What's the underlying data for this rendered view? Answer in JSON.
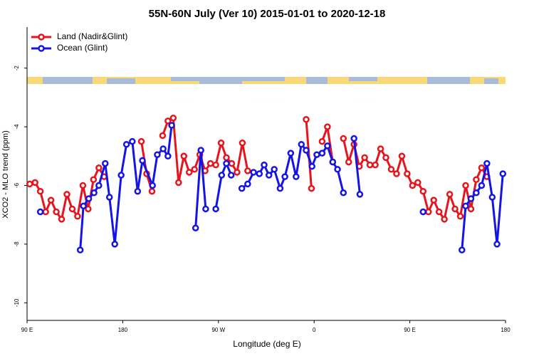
{
  "chart_data": {
    "type": "line",
    "title": "55N-60N July (Ver 10)   2015-01-01 to 2020-12-18",
    "x_label": "Longitude (deg E)",
    "y_label": "XCO2 - MLO trend (ppm)",
    "xlim": [
      90,
      540
    ],
    "ylim": [
      -10.6,
      -0.6
    ],
    "xticks": [
      {
        "value": 90,
        "label": "90 E"
      },
      {
        "value": 180,
        "label": "180"
      },
      {
        "value": 270,
        "label": "90 W"
      },
      {
        "value": 360,
        "label": "0"
      },
      {
        "value": 450,
        "label": "90 E"
      },
      {
        "value": 540,
        "label": "180"
      }
    ],
    "yticks": [
      -2,
      -4,
      -6,
      -8,
      -10
    ],
    "legend": "top-left",
    "series": [
      {
        "name": "Land (Nadir&Glint)",
        "color": "#e8141c",
        "x": [
          92.5,
          97.5,
          102.5,
          107.5,
          112.5,
          117.5,
          122.5,
          127.5,
          132.5,
          137.5,
          142.5,
          147.5,
          152.5,
          157.5,
          162.5,
          180,
          197.5,
          202.5,
          207.5,
          212.5,
          217.5,
          222.5,
          227.5,
          232.5,
          237.5,
          242.5,
          247.5,
          252.5,
          257.5,
          262.5,
          267.5,
          272.5,
          277.5,
          282.5,
          287.5,
          292.5,
          297.5,
          325,
          352.5,
          357.5,
          362.5,
          367.5,
          372.5,
          377.5,
          382.5,
          387.5,
          392.5,
          397.5,
          402.5,
          407.5,
          412.5,
          417.5,
          422.5,
          427.5,
          432.5,
          437.5,
          442.5,
          447.5,
          452.5,
          457.5,
          462.5,
          467.5,
          472.5,
          477.5,
          482.5,
          487.5,
          492.5,
          497.5,
          502.5,
          507.5,
          512.5,
          517.5,
          522.5
        ],
        "values": [
          -5.95,
          -5.9,
          -6.2,
          -6.9,
          -6.5,
          -6.9,
          -7.15,
          -6.3,
          -6.8,
          -7.05,
          -6.0,
          -6.8,
          -5.8,
          -5.4,
          -5.7,
          null,
          -4.5,
          -5.6,
          -6.2,
          null,
          -4.3,
          -3.8,
          -3.7,
          -5.9,
          -5.0,
          -5.55,
          -5.45,
          -4.95,
          -5.5,
          -5.25,
          -5.3,
          -4.55,
          -5.05,
          -5.25,
          -5.55,
          -4.55,
          -5.5,
          null,
          -3.75,
          -6.1,
          null,
          -4.5,
          -4.0,
          -5.2,
          null,
          -4.4,
          -5.2,
          -4.6,
          -5.35,
          -5.05,
          -5.3,
          -5.3,
          -4.75,
          -5.05,
          -5.45,
          -5.6,
          -5.0,
          -5.6,
          -6.0,
          -5.9,
          -6.2,
          -6.9,
          -6.5,
          -6.9,
          -7.15,
          -6.3,
          -6.8,
          -7.05,
          -6.0,
          -6.8,
          -5.8,
          -5.4,
          -5.7
        ]
      },
      {
        "name": "Ocean (Glint)",
        "color": "#1414e6",
        "x": [
          102.5,
          120,
          140,
          143,
          148,
          153,
          157.5,
          163.5,
          167.5,
          172.5,
          178.5,
          183.5,
          189,
          194,
          198.5,
          208,
          212.5,
          218,
          222.5,
          226,
          237,
          248.5,
          253.5,
          258,
          262,
          267.5,
          273,
          277.5,
          282,
          287,
          292,
          297.5,
          303,
          308.5,
          313,
          317.5,
          322.5,
          328,
          332.5,
          338,
          343,
          348,
          352.5,
          358,
          362.5,
          367.5,
          372.5,
          377.5,
          382,
          387.5,
          392,
          397.5,
          403,
          430,
          462.5,
          480,
          499,
          502.5,
          507.5,
          512.5,
          517.5,
          522.5,
          527.5,
          532,
          537.5
        ],
        "values": [
          -6.9,
          null,
          -8.2,
          -6.7,
          -6.45,
          -6.25,
          -6.0,
          -5.25,
          -6.4,
          -8.0,
          -5.65,
          -4.6,
          -4.5,
          -6.2,
          -5.15,
          -6.0,
          -4.95,
          -4.75,
          -5.0,
          -3.95,
          null,
          -7.45,
          -4.8,
          -6.8,
          null,
          -6.8,
          -5.65,
          -5.25,
          -5.65,
          null,
          -6.1,
          -5.95,
          -5.55,
          -5.6,
          -5.3,
          -5.65,
          -5.45,
          -6.1,
          -5.7,
          -4.9,
          -5.7,
          -4.6,
          -4.8,
          -5.35,
          -4.95,
          -4.9,
          -4.65,
          -5.2,
          -5.45,
          -6.25,
          null,
          -4.4,
          -6.3,
          null,
          -6.9,
          null,
          -8.2,
          -6.7,
          -6.45,
          -6.25,
          -6.0,
          -5.25,
          -6.4,
          -8.0,
          -5.6
        ]
      }
    ]
  }
}
